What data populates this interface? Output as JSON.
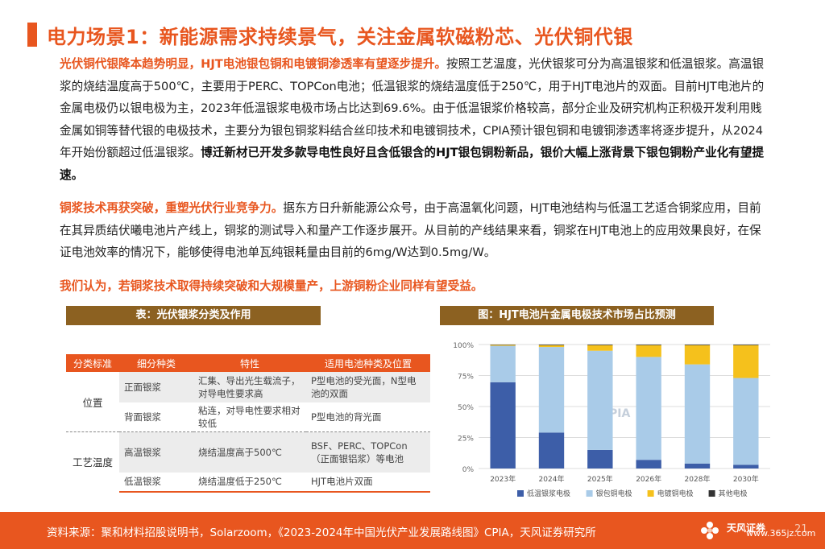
{
  "title": "电力场景1：新能源需求持续景气，关注金属软磁粉芯、光伏铜代银",
  "para1": {
    "hl": "光伏铜代银降本趋势明显，HJT电池银包铜和电镀铜渗透率有望逐步提升。",
    "body": "按照工艺温度，光伏银浆可分为高温银浆和低温银浆。高温银浆的烧结温度高于500℃，主要用于PERC、TOPCon电池；低温银浆的烧结温度低于250℃，用于HJT电池片的双面。目前HJT电池片的金属电极仍以银电极为主，2023年低温银浆电极市场占比达到69.6%。由于低温银浆价格较高，部分企业及研究机构正积极开发利用贱金属如铜等替代银的电极技术，主要分为银包铜浆料结合丝印技术和电镀铜技术，CPIA预计银包铜和电镀铜渗透率将逐步提升，从2024年开始份额超过低温银浆。",
    "bold": "博迁新材已开发多款导电性良好且含低银含的HJT银包铜粉新品，银价大幅上涨背景下银包铜粉产业化有望提速。"
  },
  "para2": {
    "hl": "铜浆技术再获突破，重塑光伏行业竞争力。",
    "body": "据东方日升新能源公众号，由于高温氧化问题，HJT电池结构与低温工艺适合铜浆应用，目前在其异质结伏曦电池片产线上，铜浆的测试导入和量产工作逐步展开。从目前的产线结果来看，铜浆在HJT电池上的应用效果良好，在保证电池效率的情况下，能够使得电池单瓦纯银耗量由目前的6mg/W达到0.5mg/W。"
  },
  "para3": "我们认为，若铜浆技术取得持续突破和大规模量产，上游铜粉企业同样有望受益。",
  "table_title": "表：光伏银浆分类及作用",
  "chart_title": "图：HJT电池片金属电极技术市场占比预测",
  "table": {
    "headers": [
      "分类标准",
      "细分种类",
      "特性",
      "适用电池种类及位置"
    ],
    "groups": [
      {
        "category": "位置",
        "rows": [
          [
            "正面银浆",
            "汇集、导出光生载流子，对导电性要求高",
            "P型电池的受光面，N型电池的双面"
          ],
          [
            "背面银浆",
            "粘连，对导电性要求相对较低",
            "P型电池的背光面"
          ]
        ]
      },
      {
        "category": "工艺温度",
        "rows": [
          [
            "高温银浆",
            "烧结温度高于500℃",
            "BSF、PERC、TOPCon（正面银铝浆）等电池"
          ],
          [
            "低温银浆",
            "烧结温度低于250℃",
            "HJT电池片双面"
          ]
        ]
      }
    ]
  },
  "chart_data": {
    "type": "bar",
    "stacked": true,
    "categories": [
      "2023年",
      "2024年",
      "2025年",
      "2026年",
      "2028年",
      "2030年"
    ],
    "series": [
      {
        "name": "低温银浆电极",
        "color": "#3d5ea8",
        "values": [
          69.6,
          29,
          15,
          7,
          4,
          3
        ]
      },
      {
        "name": "银包铜电极",
        "color": "#a9cbe8",
        "values": [
          29.4,
          69,
          80,
          83,
          80,
          70
        ]
      },
      {
        "name": "电镀铜电极",
        "color": "#f5c11c",
        "values": [
          0.7,
          1.5,
          4.5,
          9.5,
          15.5,
          26.5
        ]
      },
      {
        "name": "其他电极",
        "color": "#333333",
        "values": [
          0.3,
          0.5,
          0.5,
          0.5,
          0.5,
          0.5
        ]
      }
    ],
    "yticks": [
      "0%",
      "25%",
      "50%",
      "75%",
      "100%"
    ],
    "ylim": [
      0,
      100
    ],
    "grid": true,
    "legend": "bottom",
    "watermark_text": "CPIA"
  },
  "footer": {
    "source": "资料来源：聚和材料招股说明书，Solarzoom，《2023-2024年中国光伏产业发展路线图》CPIA，天风证券研究所",
    "logo_text": "天风证券",
    "page": "21",
    "watermark": "www.365jz.com"
  }
}
